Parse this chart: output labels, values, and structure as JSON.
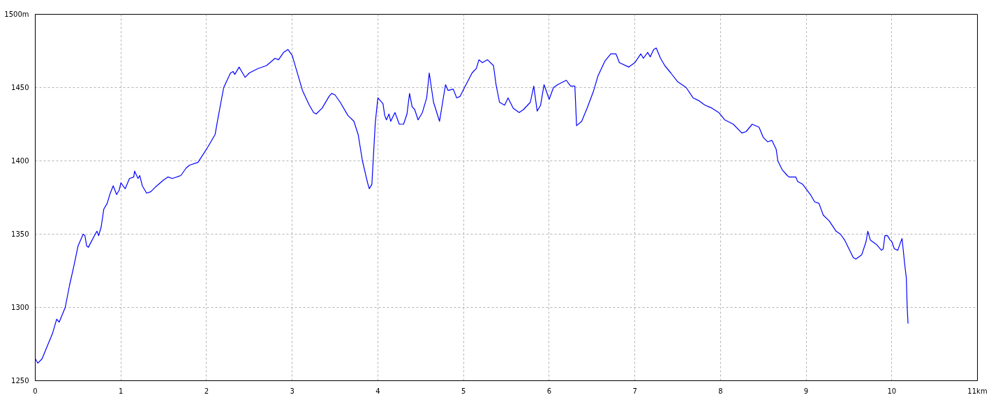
{
  "chart_data": {
    "type": "line",
    "line_style": "solid",
    "marker": "none",
    "grid": true,
    "xlim": [
      0,
      11
    ],
    "ylim": [
      1250,
      1500
    ],
    "xticks": [
      0,
      1,
      2,
      3,
      4,
      5,
      6,
      7,
      8,
      9,
      10,
      {
        "value": 11,
        "label": "11km"
      }
    ],
    "yticks": [
      1250,
      1300,
      1350,
      1400,
      1450,
      {
        "value": 1500,
        "label": "1500m"
      }
    ],
    "series": [
      {
        "color": "#0000ff",
        "x": [
          0,
          0.03,
          0.08,
          0.15,
          0.2,
          0.25,
          0.28,
          0.35,
          0.4,
          0.45,
          0.5,
          0.56,
          0.58,
          0.6,
          0.62,
          0.7,
          0.72,
          0.74,
          0.77,
          0.8,
          0.84,
          0.87,
          0.91,
          0.95,
          0.98,
          1.0,
          1.05,
          1.1,
          1.15,
          1.16,
          1.2,
          1.22,
          1.25,
          1.3,
          1.35,
          1.4,
          1.5,
          1.55,
          1.6,
          1.7,
          1.76,
          1.8,
          1.9,
          2.0,
          2.1,
          2.13,
          2.2,
          2.28,
          2.31,
          2.33,
          2.38,
          2.42,
          2.45,
          2.5,
          2.6,
          2.7,
          2.8,
          2.84,
          2.9,
          2.95,
          3.0,
          3.05,
          3.12,
          3.2,
          3.25,
          3.28,
          3.35,
          3.43,
          3.46,
          3.5,
          3.56,
          3.65,
          3.72,
          3.77,
          3.82,
          3.88,
          3.9,
          3.93,
          3.97,
          4.0,
          4.06,
          4.08,
          4.1,
          4.13,
          4.15,
          4.2,
          4.25,
          4.3,
          4.34,
          4.37,
          4.4,
          4.43,
          4.47,
          4.52,
          4.57,
          4.6,
          4.65,
          4.72,
          4.77,
          4.79,
          4.82,
          4.88,
          4.92,
          4.96,
          5.02,
          5.1,
          5.15,
          5.18,
          5.22,
          5.28,
          5.35,
          5.38,
          5.42,
          5.48,
          5.52,
          5.58,
          5.65,
          5.7,
          5.78,
          5.82,
          5.86,
          5.9,
          5.94,
          6.0,
          6.05,
          6.1,
          6.2,
          6.25,
          6.3,
          6.32,
          6.38,
          6.45,
          6.52,
          6.57,
          6.65,
          6.72,
          6.78,
          6.82,
          6.93,
          7.0,
          7.07,
          7.1,
          7.15,
          7.18,
          7.22,
          7.25,
          7.3,
          7.35,
          7.42,
          7.5,
          7.6,
          7.68,
          7.75,
          7.82,
          7.9,
          7.98,
          8.05,
          8.15,
          8.25,
          8.3,
          8.37,
          8.45,
          8.5,
          8.55,
          8.6,
          8.65,
          8.67,
          8.72,
          8.78,
          8.8,
          8.88,
          8.9,
          8.96,
          9.05,
          9.1,
          9.15,
          9.2,
          9.27,
          9.35,
          9.4,
          9.45,
          9.5,
          9.55,
          9.58,
          9.65,
          9.7,
          9.72,
          9.75,
          9.82,
          9.88,
          9.9,
          9.92,
          9.95,
          9.98,
          10.0,
          10.03,
          10.07,
          10.1,
          10.12,
          10.15,
          10.17,
          10.18,
          10.19
        ],
        "values": [
          1265,
          1262,
          1265,
          1275,
          1282,
          1292,
          1290,
          1300,
          1315,
          1328,
          1342,
          1350,
          1349,
          1342,
          1341,
          1350,
          1352,
          1349,
          1355,
          1367,
          1371,
          1377,
          1383,
          1377,
          1380,
          1385,
          1381,
          1388,
          1389,
          1393,
          1388,
          1390,
          1383,
          1378,
          1379,
          1382,
          1387,
          1389,
          1388,
          1390,
          1395,
          1397,
          1399,
          1408,
          1418,
          1428,
          1450,
          1460,
          1461,
          1459,
          1464,
          1460,
          1457,
          1460,
          1463,
          1465,
          1470,
          1469,
          1474,
          1476,
          1472,
          1462,
          1448,
          1438,
          1433,
          1432,
          1436,
          1444,
          1446,
          1445,
          1440,
          1431,
          1427,
          1418,
          1400,
          1385,
          1381,
          1384,
          1426,
          1443,
          1439,
          1431,
          1428,
          1432,
          1427,
          1433,
          1425,
          1425,
          1432,
          1446,
          1437,
          1435,
          1428,
          1433,
          1443,
          1460,
          1440,
          1427,
          1445,
          1452,
          1448,
          1449,
          1443,
          1444,
          1451,
          1460,
          1463,
          1469,
          1467,
          1469,
          1465,
          1452,
          1440,
          1438,
          1443,
          1436,
          1433,
          1435,
          1440,
          1451,
          1434,
          1438,
          1452,
          1442,
          1450,
          1452,
          1455,
          1451,
          1451,
          1424,
          1427,
          1437,
          1448,
          1458,
          1468,
          1473,
          1473,
          1467,
          1464,
          1467,
          1473,
          1470,
          1474,
          1471,
          1476,
          1477,
          1470,
          1465,
          1460,
          1454,
          1450,
          1443,
          1441,
          1438,
          1436,
          1433,
          1428,
          1425,
          1419,
          1420,
          1425,
          1423,
          1416,
          1413,
          1414,
          1408,
          1400,
          1394,
          1390,
          1389,
          1389,
          1386,
          1384,
          1377,
          1372,
          1371,
          1363,
          1359,
          1352,
          1350,
          1346,
          1340,
          1334,
          1333,
          1336,
          1345,
          1352,
          1346,
          1343,
          1339,
          1340,
          1349,
          1349,
          1346,
          1345,
          1340,
          1339,
          1344,
          1347,
          1330,
          1320,
          1300,
          1289
        ]
      }
    ]
  }
}
